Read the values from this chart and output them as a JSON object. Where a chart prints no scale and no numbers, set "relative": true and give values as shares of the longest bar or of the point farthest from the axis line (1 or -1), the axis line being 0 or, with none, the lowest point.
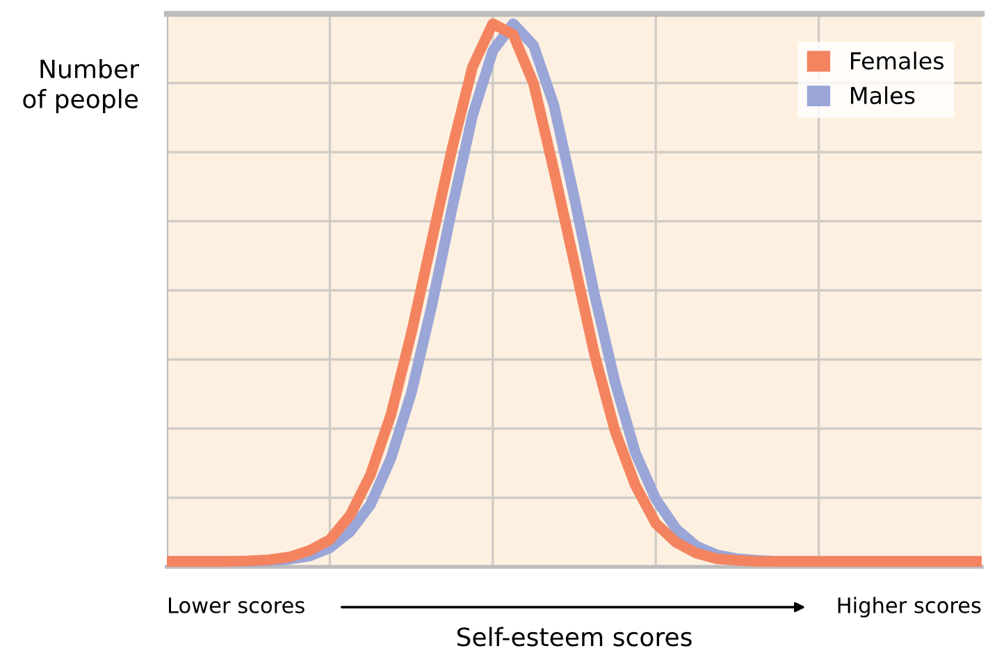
{
  "chart_data": {
    "type": "line",
    "relative": true,
    "xlabel": "Self-esteem scores",
    "ylabel": "Number\nof people",
    "annotations": [
      "Lower scores",
      "Higher scores"
    ],
    "categories": [
      null,
      null,
      null,
      null,
      null,
      null,
      null,
      null,
      null,
      null,
      null,
      null,
      null,
      null,
      null,
      null,
      null,
      null,
      null,
      null,
      null,
      null,
      null,
      null,
      null,
      null,
      null,
      null,
      null,
      null,
      null,
      null,
      null,
      null,
      null,
      null,
      null,
      null,
      null,
      null,
      null
    ],
    "series": [
      {
        "name": "Females",
        "color": "#f4845f",
        "values": [
          0.01,
          0.01,
          0.01,
          0.01,
          0.011,
          0.013,
          0.018,
          0.03,
          0.05,
          0.095,
          0.17,
          0.28,
          0.43,
          0.6,
          0.77,
          0.92,
          1.0,
          0.98,
          0.89,
          0.73,
          0.56,
          0.39,
          0.25,
          0.15,
          0.08,
          0.045,
          0.025,
          0.015,
          0.012,
          0.01,
          0.01,
          0.01,
          0.01,
          0.01,
          0.01,
          0.01,
          0.01,
          0.01,
          0.01,
          0.01,
          0.01
        ]
      },
      {
        "name": "Males",
        "color": "#9aa5d8",
        "values": [
          0.01,
          0.01,
          0.01,
          0.01,
          0.01,
          0.011,
          0.014,
          0.02,
          0.035,
          0.065,
          0.115,
          0.2,
          0.32,
          0.48,
          0.66,
          0.83,
          0.95,
          1.0,
          0.96,
          0.85,
          0.68,
          0.5,
          0.34,
          0.21,
          0.125,
          0.07,
          0.038,
          0.022,
          0.015,
          0.012,
          0.01,
          0.01,
          0.01,
          0.01,
          0.01,
          0.01,
          0.01,
          0.01,
          0.01,
          0.01,
          0.01
        ]
      }
    ],
    "grid": true,
    "legend": "top right",
    "marker": "none",
    "line_style": "solid"
  }
}
